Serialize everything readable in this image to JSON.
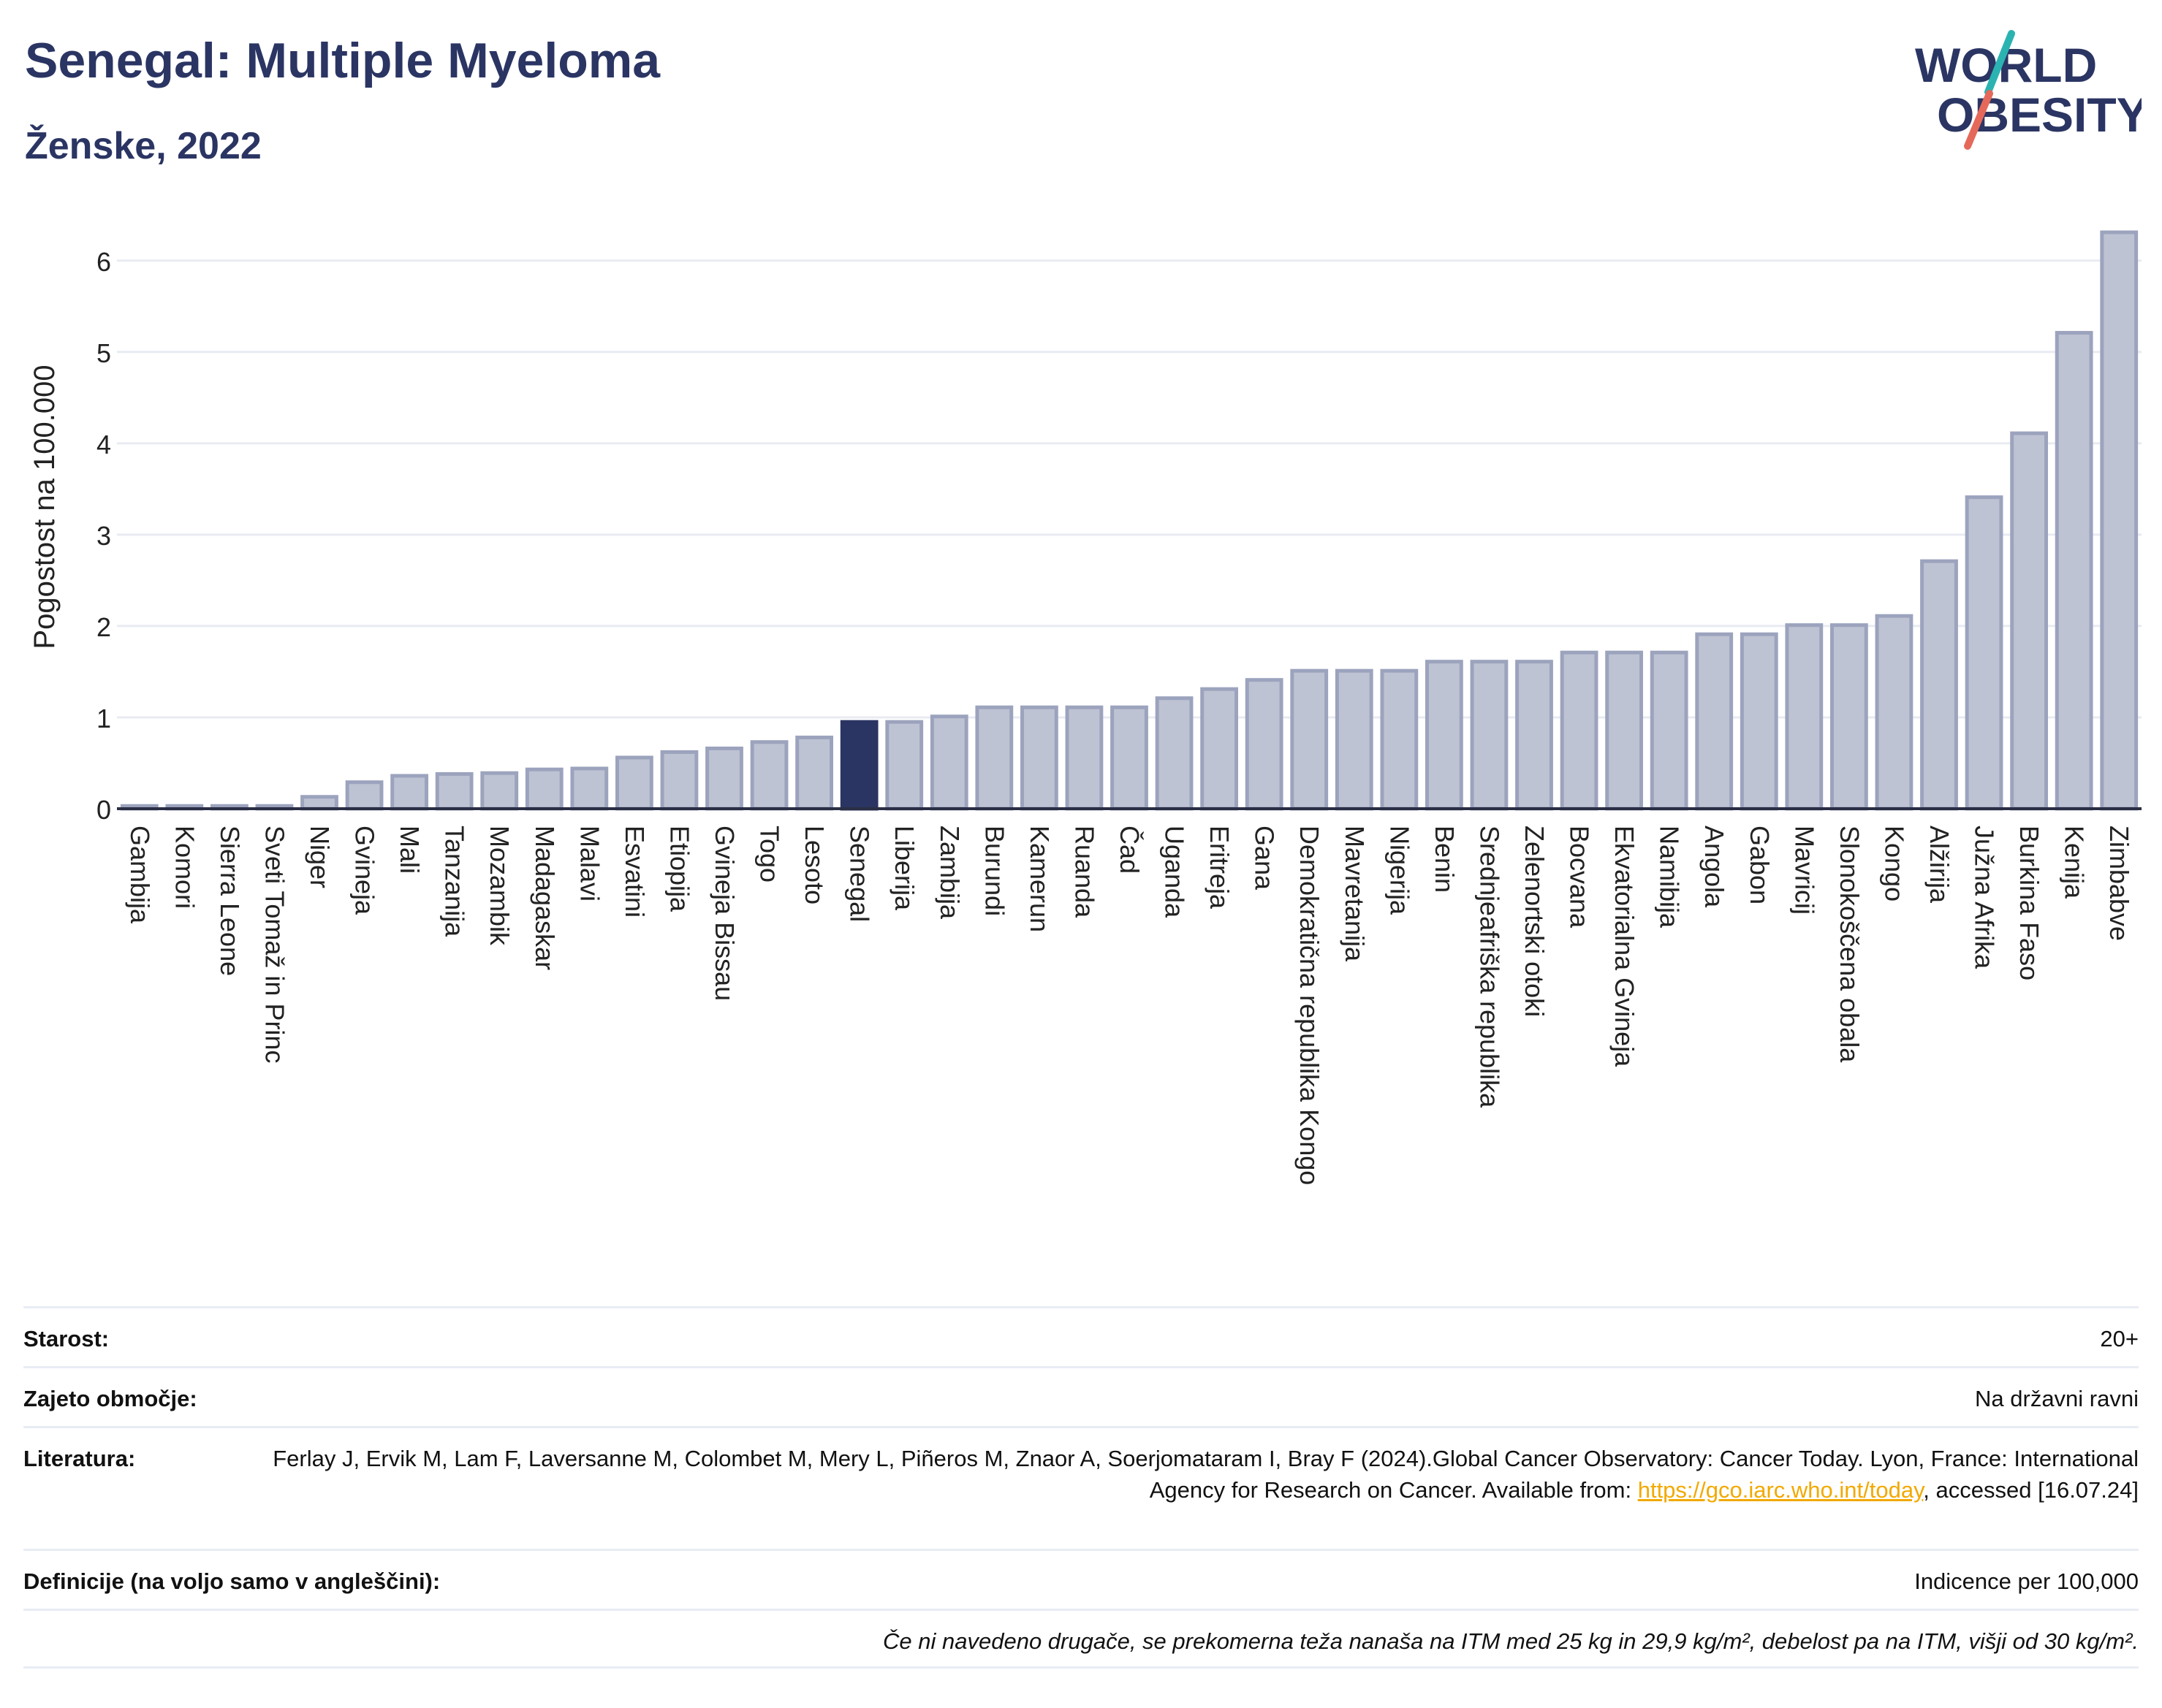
{
  "header": {
    "title": "Senegal: Multiple Myeloma",
    "subtitle": "Ženske, 2022",
    "logo_line1": "WORLD",
    "logo_line2": "OBESITY"
  },
  "colors": {
    "title": "#2b3563",
    "bar": "#bec3d3",
    "bar_stroke": "#9ca3bd",
    "highlight": "#2b3563",
    "grid": "#e8ebf2",
    "logo_teal": "#2bb3b1",
    "logo_coral": "#e5695a",
    "link": "#f2a900"
  },
  "chart_data": {
    "type": "bar",
    "ylabel": "Pogostost na 100.000",
    "ylim": [
      0,
      6.35
    ],
    "yticks": [
      0,
      1,
      2,
      3,
      4,
      5,
      6
    ],
    "grid": true,
    "highlight": "Senegal",
    "categories": [
      "Gambija",
      "Komori",
      "Sierra Leone",
      "Sveti Tomaž in Princ",
      "Niger",
      "Gvineja",
      "Mali",
      "Tanzanija",
      "Mozambik",
      "Madagaskar",
      "Malavi",
      "Esvatini",
      "Etiopija",
      "Gvineja Bissau",
      "Togo",
      "Lesoto",
      "Senegal",
      "Liberija",
      "Zambija",
      "Burundi",
      "Kamerun",
      "Ruanda",
      "Čad",
      "Uganda",
      "Eritreja",
      "Gana",
      "Demokratična republika Kongo",
      "Mavretanija",
      "Nigerija",
      "Benin",
      "Srednjeafriška republika",
      "Zelenortski otoki",
      "Bocvana",
      "Ekvatorialna Gvineja",
      "Namibija",
      "Angola",
      "Gabon",
      "Mavricij",
      "Slonokoščena obala",
      "Kongo",
      "Alžirija",
      "Južna Afrika",
      "Burkina Faso",
      "Kenija",
      "Zimbabve"
    ],
    "values": [
      0.03,
      0.03,
      0.03,
      0.03,
      0.13,
      0.29,
      0.36,
      0.38,
      0.39,
      0.43,
      0.44,
      0.56,
      0.62,
      0.66,
      0.73,
      0.78,
      0.95,
      0.95,
      1.01,
      1.11,
      1.11,
      1.11,
      1.11,
      1.21,
      1.31,
      1.41,
      1.51,
      1.51,
      1.51,
      1.61,
      1.61,
      1.61,
      1.71,
      1.71,
      1.71,
      1.91,
      1.91,
      2.01,
      2.01,
      2.11,
      2.71,
      3.41,
      4.11,
      5.21,
      6.31
    ]
  },
  "info": {
    "age_label": "Starost:",
    "age_value": "20+",
    "coverage_label": "Zajeto območje:",
    "coverage_value": "Na državni ravni",
    "refs_label": "Literatura:",
    "refs_text_before": "Ferlay J, Ervik M, Lam F, Laversanne M, Colombet M, Mery L, Piñeros M, Znaor A, Soerjomataram I, Bray F (2024).Global Cancer Observatory: Cancer Today. Lyon, France: International Agency for Research on Cancer. Available from: ",
    "refs_link": "https://gco.iarc.who.int/today",
    "refs_text_after": ", accessed [16.07.24]",
    "defs_label": "Definicije (na voljo samo v angleščini):",
    "defs_value": "Indicence per 100,000",
    "footnote": "Če ni navedeno drugače, se prekomerna teža nanaša na ITM med 25 kg in 29,9 kg/m², debelost pa na ITM, višji od 30 kg/m²."
  }
}
